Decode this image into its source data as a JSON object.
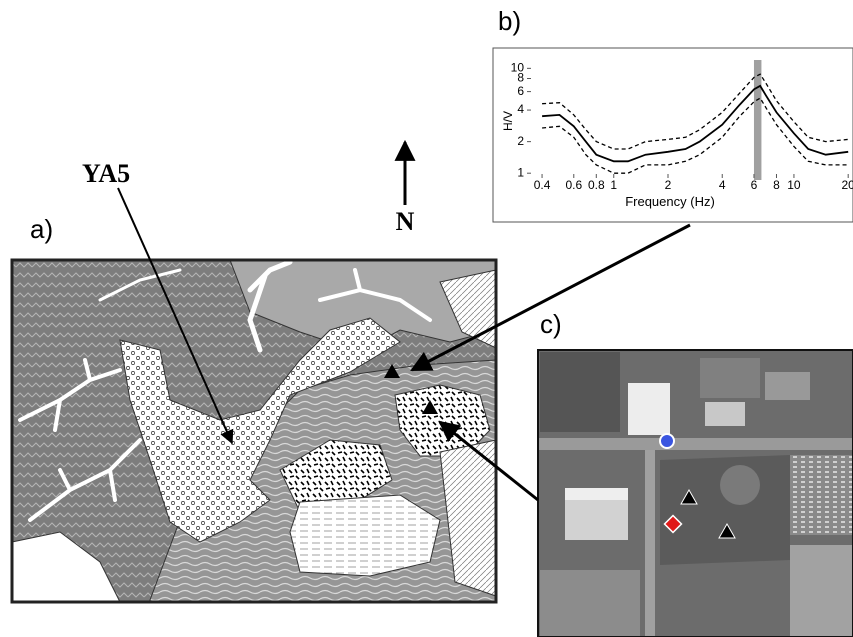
{
  "labels": {
    "a": "a)",
    "b": "b)",
    "c": "c)",
    "site": "YA5",
    "north": "N"
  },
  "chart_data": {
    "type": "line",
    "xlabel": "Frequency (Hz)",
    "ylabel": "H/V",
    "log_x": true,
    "log_y": true,
    "x": [
      0.4,
      0.5,
      0.6,
      0.7,
      0.8,
      1,
      1.2,
      1.5,
      2,
      2.5,
      3,
      4,
      5,
      6,
      6.5,
      7,
      8,
      10,
      12,
      15,
      20
    ],
    "series": [
      {
        "color": "#000000",
        "style": "solid",
        "values": [
          3.5,
          3.6,
          2.8,
          2.0,
          1.5,
          1.3,
          1.3,
          1.5,
          1.6,
          1.7,
          2.0,
          2.9,
          4.5,
          6.3,
          6.8,
          5.5,
          3.8,
          2.4,
          1.7,
          1.5,
          1.6
        ]
      },
      {
        "color": "#000000",
        "style": "dashed",
        "values": [
          4.6,
          4.7,
          3.6,
          2.6,
          2.0,
          1.7,
          1.7,
          2.0,
          2.1,
          2.2,
          2.6,
          3.8,
          5.8,
          8.2,
          8.8,
          7.2,
          4.9,
          3.1,
          2.2,
          2.0,
          2.1
        ]
      },
      {
        "color": "#000000",
        "style": "dashed",
        "values": [
          2.7,
          2.8,
          2.2,
          1.5,
          1.2,
          1.0,
          1.0,
          1.2,
          1.2,
          1.3,
          1.5,
          2.2,
          3.5,
          4.8,
          5.2,
          4.2,
          2.9,
          1.8,
          1.3,
          1.2,
          1.2
        ]
      }
    ],
    "peak_band": [
      6.0,
      6.6
    ],
    "peak_color": "#a0a0a0",
    "xlim": [
      0.33,
      21
    ],
    "ylim": [
      0.9,
      11
    ],
    "xticks": [
      0.4,
      0.6,
      0.8,
      1,
      2,
      4,
      6,
      8,
      10,
      20
    ],
    "yticks": [
      1,
      2,
      4,
      6,
      8,
      10
    ]
  }
}
